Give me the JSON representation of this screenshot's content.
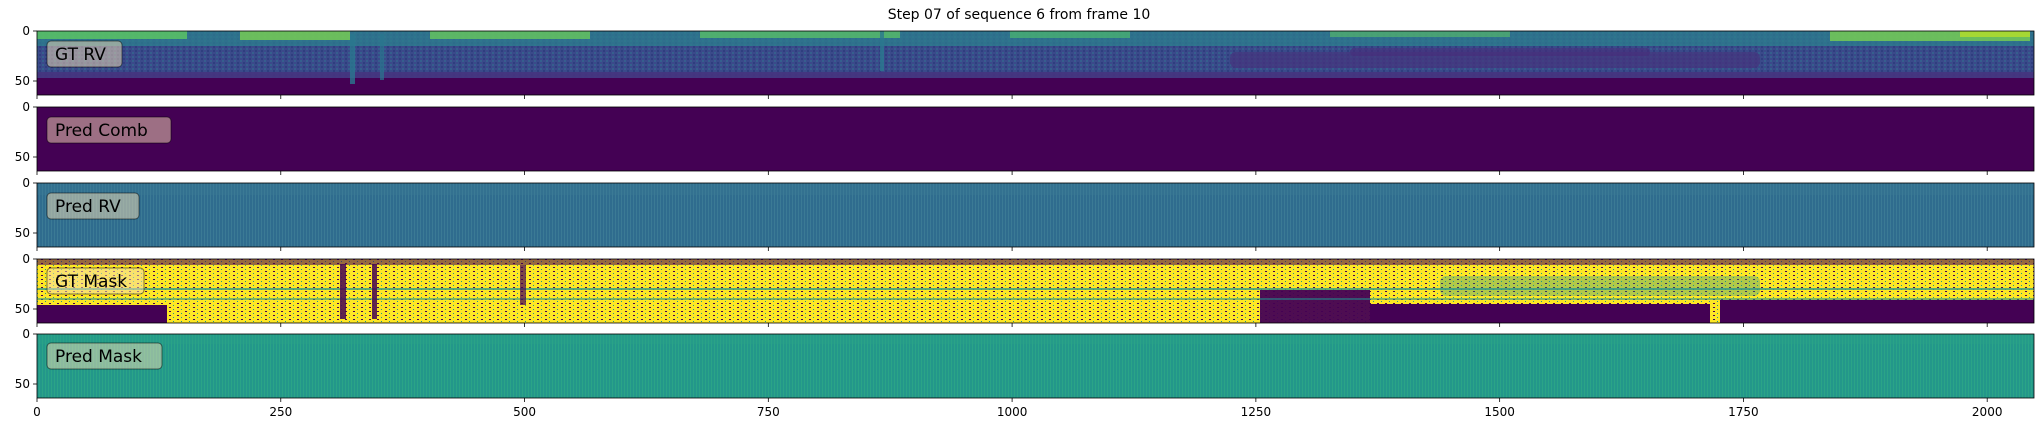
{
  "title": "Step 07 of sequence 6 from frame 10",
  "chart_data": {
    "type": "heatmap",
    "title": "Step 07 of sequence 6 from frame 10",
    "xlim": [
      0,
      2048
    ],
    "ylim": [
      64,
      0
    ],
    "x_ticks": [
      0,
      250,
      500,
      750,
      1000,
      1250,
      1500,
      1750,
      2000
    ],
    "x_tick_labels": [
      "0",
      "250",
      "500",
      "750",
      "1000",
      "1250",
      "1500",
      "1750",
      "2000"
    ],
    "y_ticks": [
      0,
      50
    ],
    "y_tick_labels": [
      "0",
      "50"
    ],
    "colormap": "viridis",
    "panels": [
      {
        "label": "GT RV",
        "content": "range image: yellow-green near returns on upper rows, teal mid-range structures, dark purple empty lower rows"
      },
      {
        "label": "Pred Comb",
        "content": "uniform dark purple"
      },
      {
        "label": "Pred RV",
        "content": "uniform teal-blue with faint vertical striping"
      },
      {
        "label": "GT Mask",
        "content": "binary mask: yellow valid region over central rows, dark purple invalid regions"
      },
      {
        "label": "Pred Mask",
        "content": "uniform green-teal with faint vertical striping"
      }
    ]
  },
  "colors": {
    "viridis_low": "#440154",
    "viridis_blue": "#31688e",
    "viridis_teal": "#21918c",
    "viridis_green": "#5ec962",
    "viridis_high": "#fde725",
    "label_box": "#f5deb3"
  }
}
